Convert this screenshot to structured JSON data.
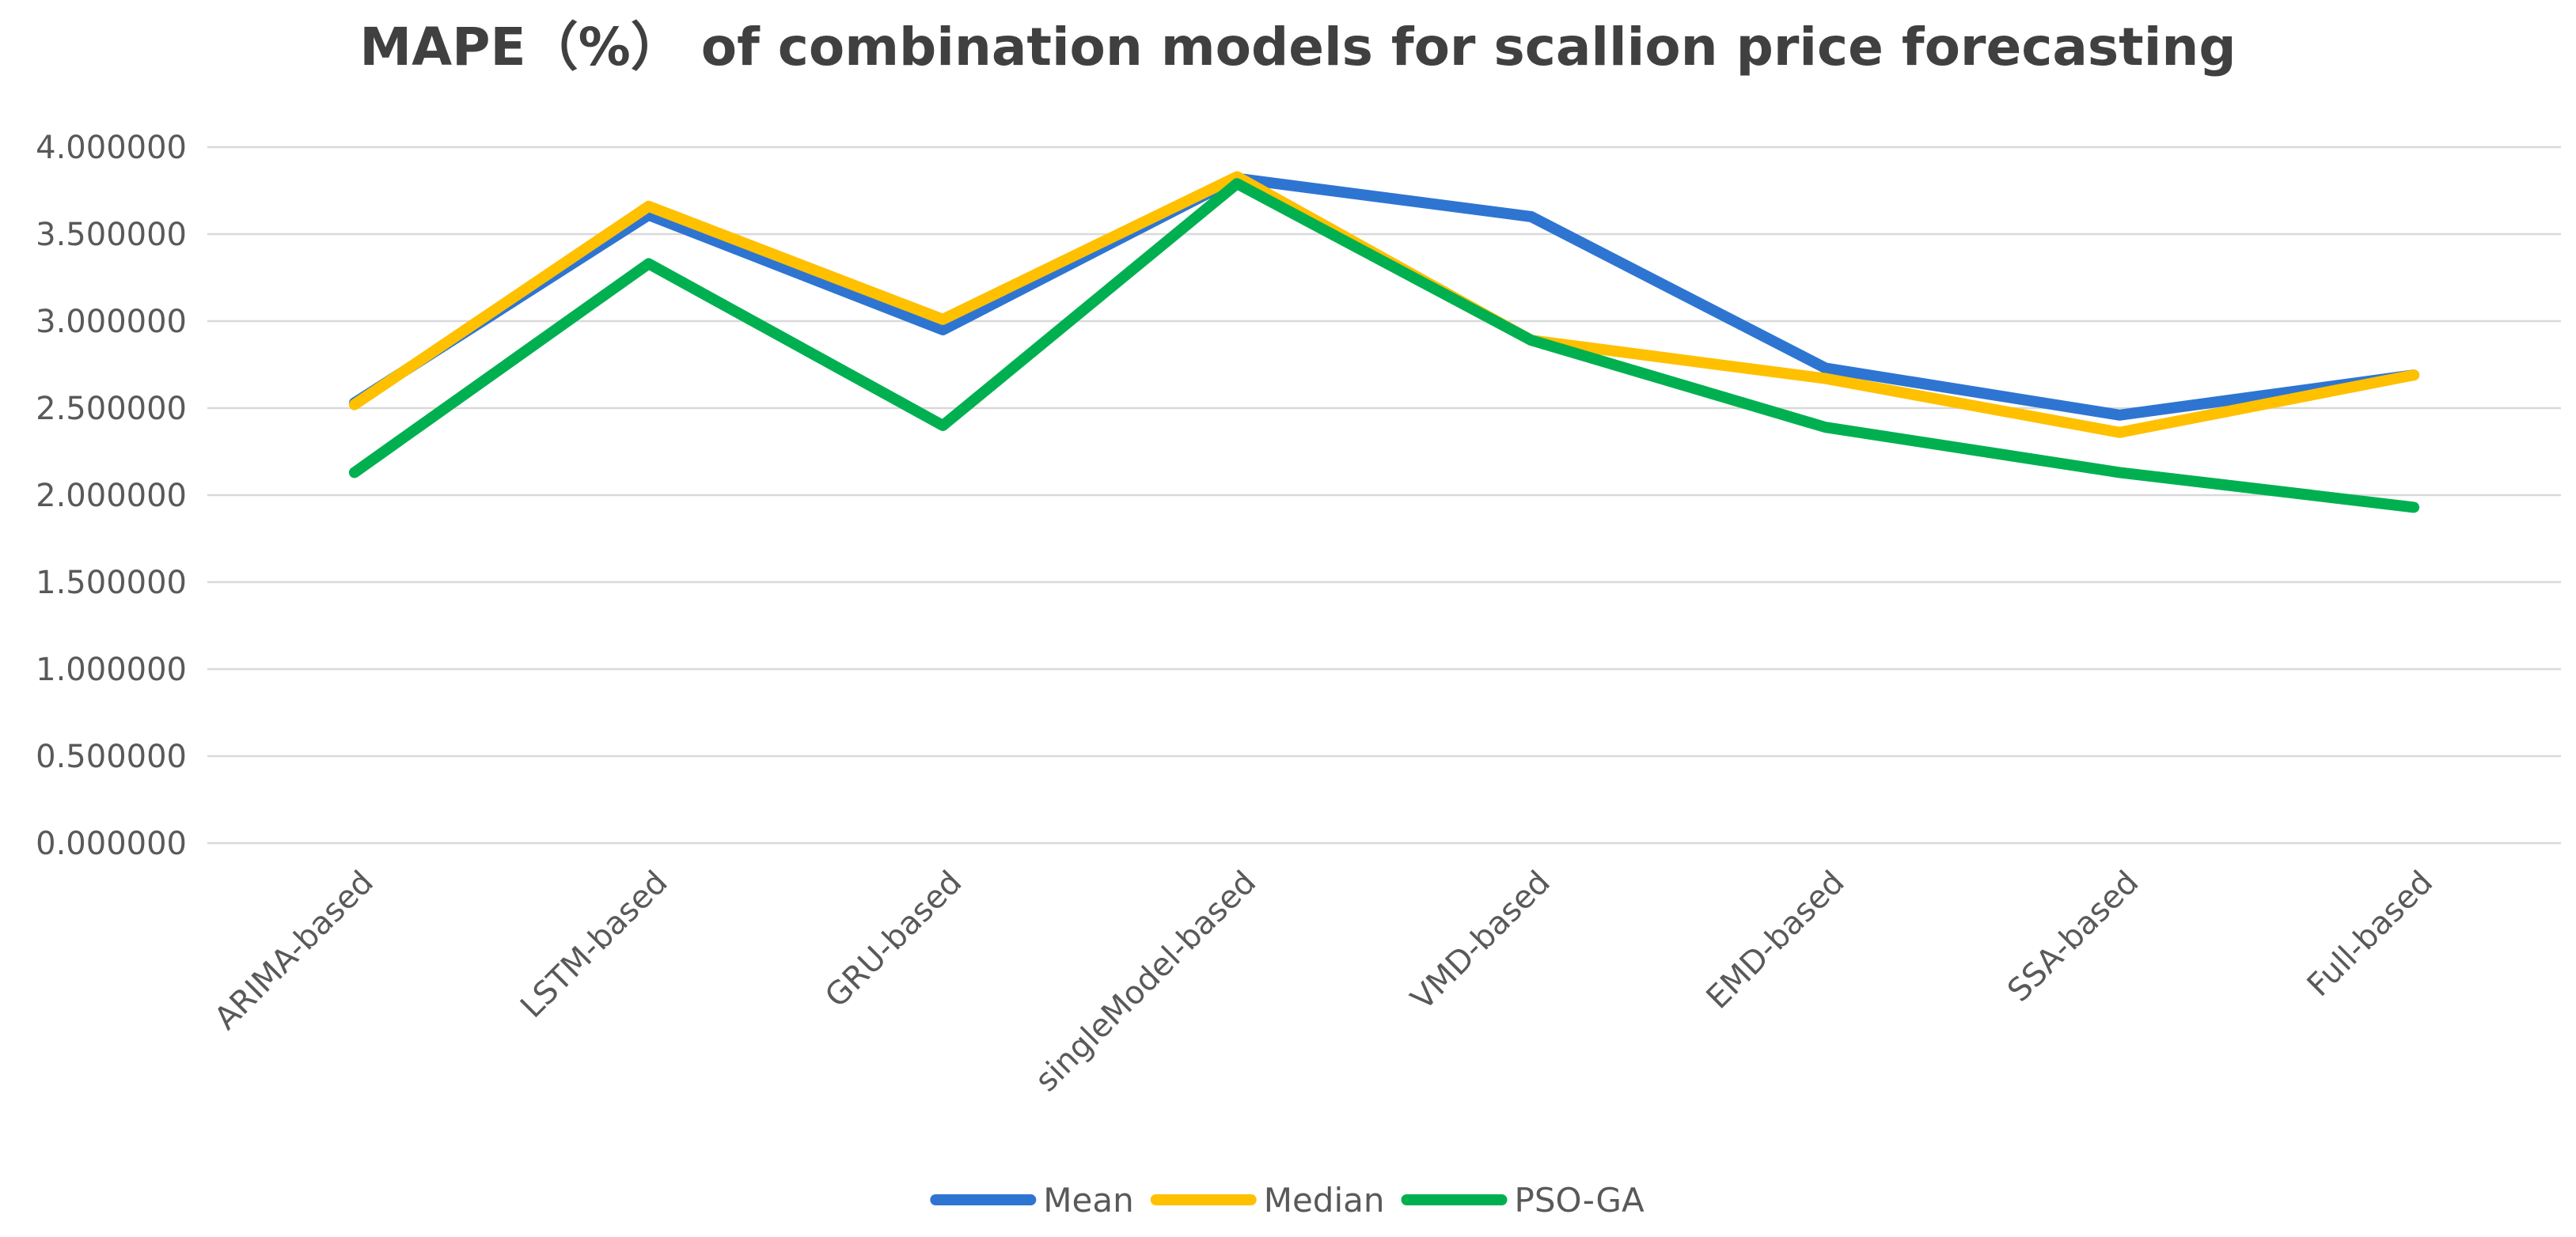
{
  "chart_data": {
    "type": "line",
    "title": "MAPE（%） of combination models for scallion price forecasting",
    "xlabel": "",
    "ylabel": "",
    "categories": [
      "ARIMA-based",
      "LSTM-based",
      "GRU-based",
      "singleModel-based",
      "VMD-based",
      "EMD-based",
      "SSA-based",
      "Full-based"
    ],
    "y_ticks": [
      "0.000000",
      "0.500000",
      "1.000000",
      "1.500000",
      "2.000000",
      "2.500000",
      "3.000000",
      "3.500000",
      "4.000000"
    ],
    "ylim": [
      0,
      4
    ],
    "grid": true,
    "legend_position": "bottom",
    "series": [
      {
        "name": "Mean",
        "color": "#2E75D2",
        "values": [
          2.53,
          3.61,
          2.95,
          3.82,
          3.6,
          2.73,
          2.46,
          2.69
        ]
      },
      {
        "name": "Median",
        "color": "#FFC000",
        "values": [
          2.52,
          3.66,
          3.01,
          3.83,
          2.89,
          2.67,
          2.36,
          2.69
        ]
      },
      {
        "name": "PSO-GA",
        "color": "#00B050",
        "values": [
          2.13,
          3.33,
          2.4,
          3.79,
          2.89,
          2.39,
          2.13,
          1.93
        ]
      }
    ]
  }
}
